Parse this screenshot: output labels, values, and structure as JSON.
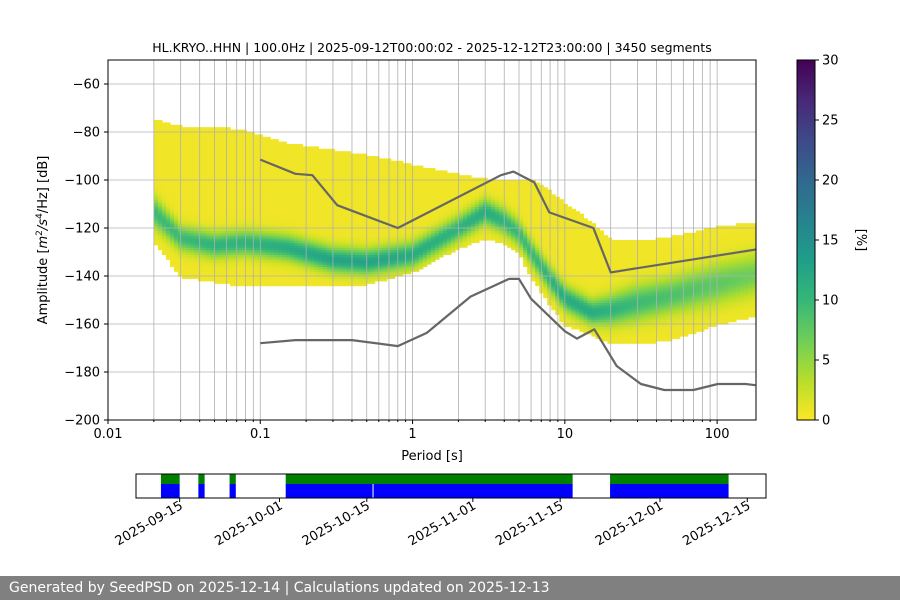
{
  "chart_data": {
    "type": "heatmap",
    "title": "HL.KRYO..HHN | 100.0Hz | 2025-09-12T00:00:02 - 2025-12-12T23:00:00 | 3450 segments",
    "xlabel": "Period [s]",
    "ylabel_parts": [
      "Amplitude [",
      "m",
      "2",
      "/",
      "s",
      "4",
      "/Hz] [dB]"
    ],
    "x_scale": "log",
    "xlim": [
      0.01,
      180
    ],
    "ylim": [
      -200,
      -50
    ],
    "x_ticks": [
      {
        "v": 0.01,
        "label": "0.01"
      },
      {
        "v": 0.1,
        "label": "0.1"
      },
      {
        "v": 1,
        "label": "1"
      },
      {
        "v": 10,
        "label": "10"
      },
      {
        "v": 100,
        "label": "100"
      }
    ],
    "y_ticks": [
      {
        "v": -60,
        "label": "−60"
      },
      {
        "v": -80,
        "label": "−80"
      },
      {
        "v": -100,
        "label": "−100"
      },
      {
        "v": -120,
        "label": "−120"
      },
      {
        "v": -140,
        "label": "−140"
      },
      {
        "v": -160,
        "label": "−160"
      },
      {
        "v": -180,
        "label": "−180"
      },
      {
        "v": -200,
        "label": "−200"
      }
    ],
    "grid": true,
    "colorbar": {
      "label": "[%]",
      "range": [
        0,
        30
      ],
      "ticks": [
        {
          "v": 0,
          "label": "0"
        },
        {
          "v": 5,
          "label": "5"
        },
        {
          "v": 10,
          "label": "10"
        },
        {
          "v": 15,
          "label": "15"
        },
        {
          "v": 20,
          "label": "20"
        },
        {
          "v": 25,
          "label": "25"
        },
        {
          "v": 30,
          "label": "30"
        }
      ],
      "colormap": "viridis_r",
      "stops": [
        "#fde725",
        "#b5de2b",
        "#6ece58",
        "#35b779",
        "#1f9e89",
        "#26828e",
        "#31688e",
        "#3e4989",
        "#482878",
        "#440154"
      ]
    },
    "density_band": {
      "period": [
        0.02,
        0.03,
        0.05,
        0.08,
        0.15,
        0.3,
        0.5,
        1,
        2,
        3,
        4,
        5,
        6,
        8,
        10,
        15,
        20,
        30,
        50,
        100,
        180
      ],
      "min_db": [
        -125,
        -140,
        -142,
        -144,
        -144,
        -144,
        -143,
        -138,
        -128,
        -124,
        -126,
        -130,
        -140,
        -152,
        -160,
        -164,
        -168,
        -168,
        -166,
        -160,
        -156
      ],
      "max_db": [
        -75,
        -78,
        -78,
        -80,
        -85,
        -88,
        -90,
        -94,
        -98,
        -100,
        -100,
        -100,
        -100,
        -105,
        -110,
        -118,
        -125,
        -126,
        -124,
        -120,
        -118
      ],
      "mode_db": [
        -113,
        -124,
        -127,
        -126,
        -128,
        -133,
        -134,
        -131,
        -120,
        -113,
        -117,
        -122,
        -130,
        -141,
        -149,
        -155,
        -154,
        -151,
        -148,
        -143,
        -139
      ],
      "mode_width_db": [
        6,
        5,
        5,
        5,
        5,
        5,
        5,
        5,
        5,
        5,
        5,
        5,
        5,
        5,
        5,
        5,
        6,
        7,
        7,
        8,
        8
      ],
      "mode_peak_pct": [
        9,
        9,
        10,
        10,
        11,
        12,
        12,
        11,
        10,
        11,
        10,
        9,
        9,
        10,
        11,
        11,
        10,
        9,
        8,
        7,
        6
      ]
    },
    "series": [
      {
        "style": "noise-model",
        "x": [
          0.1,
          0.17,
          0.22,
          0.32,
          0.8,
          3.8,
          4.6,
          6.3,
          7.9,
          15.4,
          20,
          354.8
        ],
        "y": [
          -91.5,
          -97.4,
          -98,
          -110.5,
          -120,
          -98,
          -96.5,
          -101,
          -113.5,
          -120,
          -138.5,
          -126
        ]
      },
      {
        "style": "noise-model",
        "x": [
          0.1,
          0.17,
          0.4,
          0.8,
          1.24,
          2.4,
          4.3,
          5,
          6,
          10,
          12,
          15.6,
          21.9,
          31.6,
          45,
          70,
          101,
          154,
          178
        ],
        "y": [
          -168,
          -166.7,
          -166.7,
          -169.2,
          -163.7,
          -148.6,
          -141.2,
          -141.2,
          -149.5,
          -163,
          -166.1,
          -162.2,
          -177.5,
          -185,
          -187.5,
          -187.5,
          -185,
          -185,
          -185.5
        ]
      }
    ]
  },
  "availability": {
    "date_labels": [
      {
        "d": "2025-09-15",
        "label": "2025-09-15"
      },
      {
        "d": "2025-10-01",
        "label": "2025-10-01"
      },
      {
        "d": "2025-10-15",
        "label": "2025-10-15"
      },
      {
        "d": "2025-11-01",
        "label": "2025-11-01"
      },
      {
        "d": "2025-11-15",
        "label": "2025-11-15"
      },
      {
        "d": "2025-12-01",
        "label": "2025-12-01"
      },
      {
        "d": "2025-12-15",
        "label": "2025-12-15"
      }
    ],
    "range": [
      "2025-09-08",
      "2025-12-18"
    ],
    "segments": [
      [
        "2025-09-12",
        "2025-09-15"
      ],
      [
        "2025-09-18",
        "2025-09-19"
      ],
      [
        "2025-09-23",
        "2025-09-24"
      ],
      [
        "2025-10-02",
        "2025-10-16",
        "2025-11-17",
        "2025-11-19",
        "2025-11-21"
      ],
      [
        "2025-11-23",
        "2025-12-12"
      ]
    ],
    "colors": {
      "top": "#008000",
      "bottom": "#0000ff"
    }
  },
  "footer": {
    "text": "Generated by SeedPSD on 2025-12-14 | Calculations updated on 2025-12-13"
  }
}
